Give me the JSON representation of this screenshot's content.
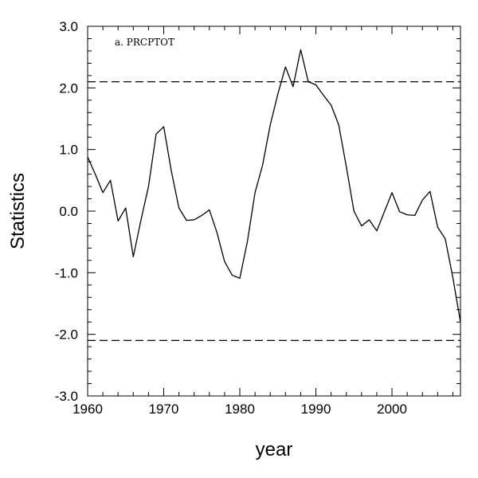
{
  "chart_data": {
    "type": "line",
    "annotation": "a. PRCPTOT",
    "xlabel": "year",
    "ylabel": "Statistics",
    "xlim": [
      1960,
      2009
    ],
    "ylim": [
      -3.0,
      3.0
    ],
    "x_ticks": [
      1960,
      1970,
      1980,
      1990,
      2000
    ],
    "x_tick_labels": [
      "1960",
      "1970",
      "1980",
      "1990",
      "2000"
    ],
    "y_ticks": [
      3.0,
      2.0,
      1.0,
      0.0,
      -1.0,
      -2.0,
      -3.0
    ],
    "y_tick_labels": [
      "3.0",
      "2.0",
      "1.0",
      "0.0",
      "-1.0",
      "-2.0",
      "-3.0"
    ],
    "reference_lines": [
      {
        "y": 2.1,
        "style": "dashed"
      },
      {
        "y": -2.1,
        "style": "dashed"
      }
    ],
    "grid": false,
    "legend": "none",
    "series": [
      {
        "color": "#000000",
        "x": [
          1960,
          1961,
          1962,
          1963,
          1964,
          1965,
          1966,
          1967,
          1968,
          1969,
          1970,
          1971,
          1972,
          1973,
          1974,
          1975,
          1976,
          1977,
          1978,
          1979,
          1980,
          1981,
          1982,
          1983,
          1984,
          1985,
          1986,
          1987,
          1988,
          1989,
          1990,
          1991,
          1992,
          1993,
          1994,
          1995,
          1996,
          1997,
          1998,
          1999,
          2000,
          2001,
          2002,
          2003,
          2004,
          2005,
          2006,
          2007,
          2008,
          2009
        ],
        "y": [
          0.88,
          0.6,
          0.3,
          0.5,
          -0.16,
          0.05,
          -0.74,
          -0.15,
          0.4,
          1.25,
          1.37,
          0.65,
          0.05,
          -0.15,
          -0.14,
          -0.07,
          0.02,
          -0.35,
          -0.82,
          -1.04,
          -1.09,
          -0.49,
          0.3,
          0.75,
          1.4,
          1.9,
          2.34,
          2.02,
          2.62,
          2.1,
          2.05,
          1.88,
          1.72,
          1.4,
          0.72,
          0.0,
          -0.24,
          -0.14,
          -0.32,
          -0.01,
          0.3,
          -0.01,
          -0.06,
          -0.07,
          0.18,
          0.32,
          -0.26,
          -0.45,
          -1.08,
          -1.8
        ]
      }
    ]
  }
}
